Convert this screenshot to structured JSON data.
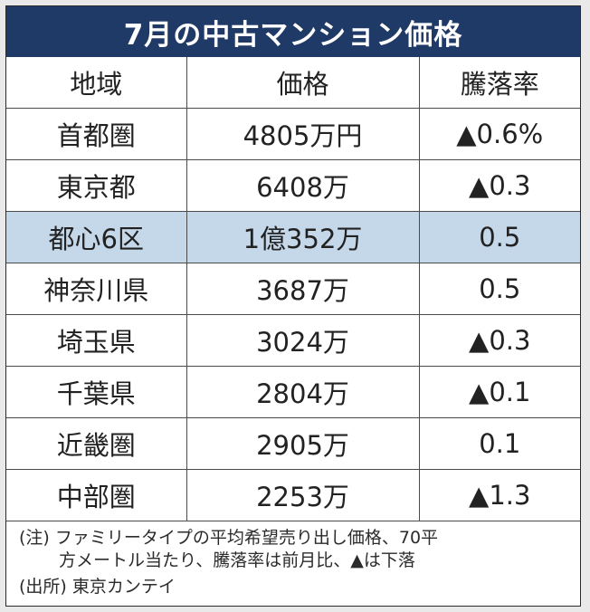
{
  "title": "7月の中古マンション価格",
  "headers": [
    "地域",
    "価格",
    "騰落率"
  ],
  "rows": [
    {
      "region": "首都圏",
      "price": "4805万円",
      "change": "▲0.6%"
    },
    {
      "region": "東京都",
      "price": "6408万",
      "change": "▲0.3"
    },
    {
      "region": "都心6区",
      "price": "1億352万",
      "change": "0.5",
      "highlighted": true
    },
    {
      "region": "神奈川県",
      "price": "3687万",
      "change": "0.5"
    },
    {
      "region": "埼玉県",
      "price": "3024万",
      "change": "▲0.3"
    },
    {
      "region": "千葉県",
      "price": "2804万",
      "change": "▲0.1"
    },
    {
      "region": "近畿圏",
      "price": "2905万",
      "change": "0.1"
    },
    {
      "region": "中部圏",
      "price": "2253万",
      "change": "▲1.3"
    }
  ],
  "note_line1": "(注) ファミリータイプの平均希望売り出し価格、70平",
  "note_line2": "方メートル当たり、騰落率は前月比、▲は下落",
  "source": "(出所) 東京カンテイ",
  "colors": {
    "title_background": "#1f3a67",
    "highlight_row": "#c5d8ea"
  }
}
